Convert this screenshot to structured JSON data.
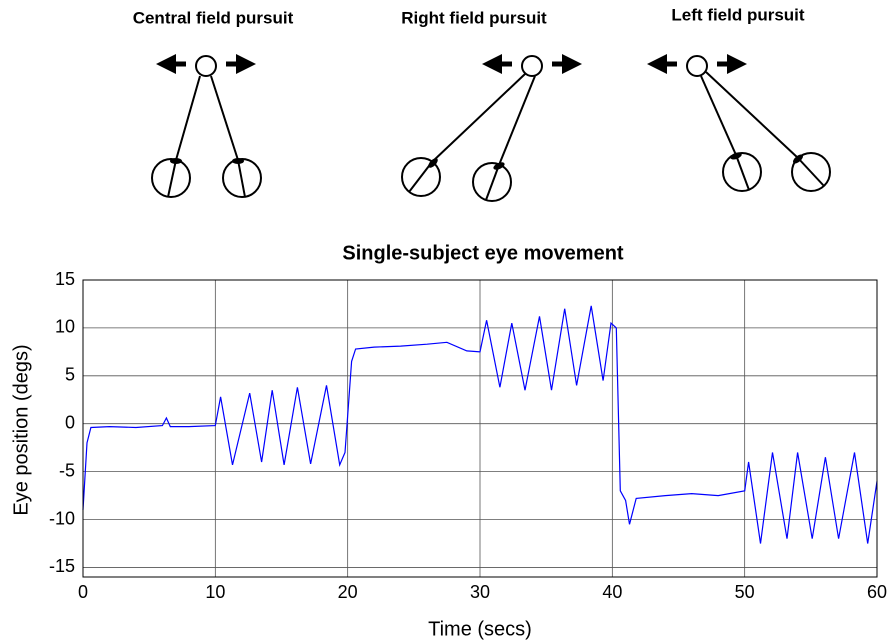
{
  "diagram_titles": [
    "Central field pursuit",
    "Right field pursuit",
    "Left field pursuit"
  ],
  "chart_data": {
    "type": "line",
    "title": "Single-subject eye movement",
    "x_label": "Time (secs)",
    "y_label": "Eye position (degs)",
    "x": [
      0,
      0.3,
      0.6,
      2,
      4,
      6,
      6.3,
      6.6,
      8,
      10,
      10.4,
      11.3,
      12.6,
      13.5,
      14.3,
      15.2,
      16.2,
      17.2,
      18.4,
      19.4,
      19.8,
      20.3,
      20.6,
      22,
      24,
      26,
      27.5,
      29,
      30,
      30.5,
      31.5,
      32.4,
      33.4,
      34.5,
      35.4,
      36.4,
      37.3,
      38.4,
      39.3,
      39.9,
      40.3,
      40.6,
      41,
      41.3,
      41.8,
      44,
      46,
      48,
      50,
      50.3,
      51.2,
      52.1,
      53.2,
      54,
      55.1,
      56.1,
      57.1,
      58.3,
      59.3,
      60
    ],
    "values": [
      -9,
      -2,
      -0.4,
      -0.3,
      -0.4,
      -0.2,
      0.6,
      -0.3,
      -0.3,
      -0.2,
      2.8,
      -4.3,
      3.2,
      -4,
      3.5,
      -4.3,
      3.8,
      -4.2,
      4,
      -4.3,
      -3,
      6.5,
      7.8,
      8,
      8.1,
      8.3,
      8.5,
      7.6,
      7.5,
      10.8,
      3.8,
      10.5,
      3.5,
      11.2,
      3.5,
      12,
      4,
      12.3,
      4.5,
      10.5,
      10,
      -7,
      -8,
      -10.5,
      -7.8,
      -7.5,
      -7.3,
      -7.5,
      -7,
      -4,
      -12.5,
      -3,
      -12,
      -3,
      -12,
      -3.5,
      -12,
      -3,
      -12.5,
      -6
    ],
    "color": "#0000ff",
    "xlim": [
      0,
      60
    ],
    "xticks": [
      0,
      10,
      20,
      30,
      40,
      50,
      60
    ],
    "ylim": [
      -16,
      15
    ],
    "yticks": [
      -15,
      -10,
      -5,
      0,
      5,
      10,
      15
    ],
    "grid": true
  }
}
